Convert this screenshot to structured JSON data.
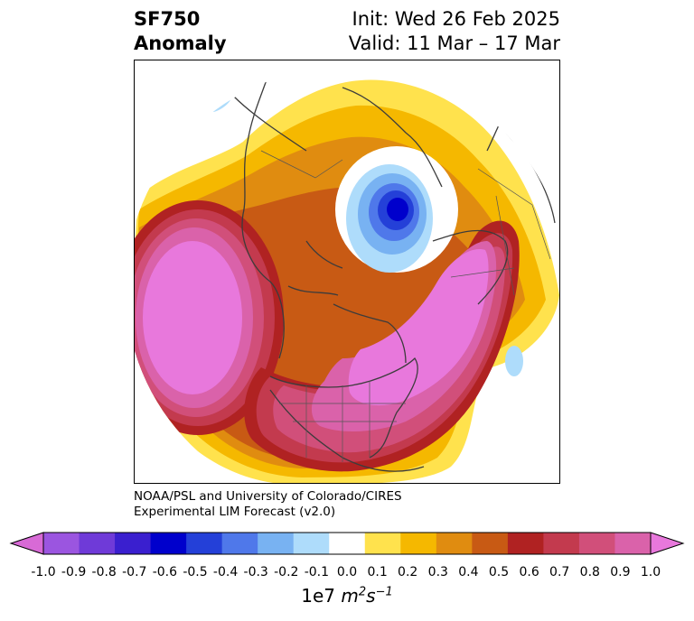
{
  "header": {
    "variable": "SF750",
    "kind": "Anomaly",
    "init": "Init: Wed 26 Feb 2025",
    "valid": "Valid: 11 Mar – 17 Mar"
  },
  "credit": {
    "line1": "NOAA/PSL and University of Colorado/CIRES",
    "line2": "Experimental LIM Forecast (v2.0)"
  },
  "colorbar": {
    "ticks": [
      "-1.0",
      "-0.9",
      "-0.8",
      "-0.7",
      "-0.6",
      "-0.5",
      "-0.4",
      "-0.3",
      "-0.2",
      "-0.1",
      "0.0",
      "0.1",
      "0.2",
      "0.3",
      "0.4",
      "0.5",
      "0.6",
      "0.7",
      "0.8",
      "0.9",
      "1.0"
    ],
    "colors": [
      "#9b55e0",
      "#6f3ad8",
      "#3a1fcf",
      "#0000cc",
      "#2440d8",
      "#4f78ea",
      "#78b2f2",
      "#aedcfb",
      "#ffffff",
      "#ffe24d",
      "#f5b800",
      "#e08c10",
      "#c85a14",
      "#b02222",
      "#c33a4e",
      "#d14f7a",
      "#da62aa"
    ],
    "under_color": "#d86ad6",
    "over_color": "#e878dc",
    "units_base": "1e7",
    "units_m": "m",
    "units_m_exp": "2",
    "units_s": "s",
    "units_s_exp": "−1"
  }
}
